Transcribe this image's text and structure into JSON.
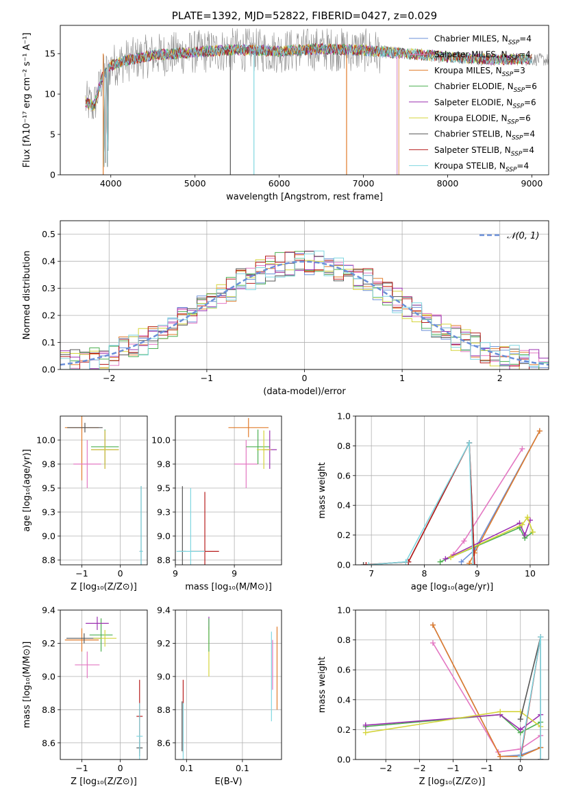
{
  "colors": {
    "Chabrier MILES": "#6a8fd8",
    "Salpeter MILES": "#e377c2",
    "Kroupa MILES": "#e07b2a",
    "Chabrier ELODIE": "#4caf50",
    "Salpeter ELODIE": "#9b30b0",
    "Kroupa ELODIE": "#d4d43a",
    "Chabrier STELIB": "#555555",
    "Salpeter STELIB": "#b71c1c",
    "Kroupa STELIB": "#7fd6e0",
    "data": "#888888"
  },
  "chart_data": [
    {
      "id": "spectrum",
      "type": "line",
      "title": "PLATE=1392, MJD=52822, FIBERID=0427, z=0.029",
      "xlabel": "wavelength [Angstrom, rest frame]",
      "ylabel": "Flux [fλ10⁻¹⁷ erg cm⁻² s⁻¹ A⁻¹]",
      "xlim": [
        3400,
        9200
      ],
      "ylim": [
        0,
        18.5
      ],
      "xticks": [
        4000,
        5000,
        6000,
        7000,
        8000,
        9000
      ],
      "yticks": [
        0,
        5,
        10,
        15
      ],
      "legend_position": "top-right",
      "legend": [
        {
          "label": "Chabrier MILES, N",
          "sub": "SSP",
          "tail": "=4"
        },
        {
          "label": "Salpeter MILES, N",
          "sub": "SSP",
          "tail": "=4"
        },
        {
          "label": "Kroupa MILES, N",
          "sub": "SSP",
          "tail": "=3"
        },
        {
          "label": "Chabrier ELODIE, N",
          "sub": "SSP",
          "tail": "=6"
        },
        {
          "label": "Salpeter ELODIE, N",
          "sub": "SSP",
          "tail": "=6"
        },
        {
          "label": "Kroupa ELODIE, N",
          "sub": "SSP",
          "tail": "=6"
        },
        {
          "label": "Chabrier STELIB, N",
          "sub": "SSP",
          "tail": "=4"
        },
        {
          "label": "Salpeter STELIB, N",
          "sub": "SSP",
          "tail": "=4"
        },
        {
          "label": "Kroupa STELIB, N",
          "sub": "SSP",
          "tail": "=4"
        }
      ],
      "continuum": [
        [
          3700,
          9.0
        ],
        [
          3800,
          8.5
        ],
        [
          3900,
          12.0
        ],
        [
          4000,
          13.5
        ],
        [
          4200,
          14.2
        ],
        [
          4500,
          14.8
        ],
        [
          5000,
          15.2
        ],
        [
          5500,
          15.5
        ],
        [
          6000,
          15.3
        ],
        [
          6500,
          15.6
        ],
        [
          7000,
          15.4
        ],
        [
          7500,
          15.0
        ],
        [
          8000,
          14.6
        ],
        [
          8500,
          14.3
        ],
        [
          9000,
          14.3
        ],
        [
          9200,
          14.2
        ]
      ],
      "model_cuts": [
        {
          "series": "Kroupa MILES",
          "x": [
            3700,
            7420
          ]
        },
        {
          "series": "Kroupa STELIB",
          "x": [
            3700,
            9000
          ]
        }
      ]
    },
    {
      "id": "residuals",
      "type": "step",
      "xlabel": "(data-model)/error",
      "ylabel": "Normed distribution",
      "xlim": [
        -2.5,
        2.5
      ],
      "ylim": [
        0,
        0.55
      ],
      "xticks": [
        -2,
        -1,
        0,
        1,
        2
      ],
      "yticks": [
        0.0,
        0.1,
        0.2,
        0.3,
        0.4,
        0.5
      ],
      "legend_position": "top-right",
      "legend": [
        {
          "label": "𝒩(0, 1)"
        }
      ],
      "bin_width": 0.1
    },
    {
      "id": "age-vs-Z",
      "type": "scatter",
      "xlabel": "Z [log₁₀(Z/Z⊙)]",
      "ylabel": "age  [log₁₀(age/yr)]",
      "xlim": [
        -0.78,
        0.35
      ],
      "ylim": [
        8.7,
        10.25
      ],
      "xticks": [
        -0.5,
        0.0
      ],
      "yticks": [
        8.75,
        9.0,
        9.25,
        9.5,
        9.75,
        10.0
      ],
      "points": [
        {
          "series": "Kroupa MILES",
          "x": -0.5,
          "y": 10.13,
          "xerr": 0.22,
          "yerr": 0.55
        },
        {
          "series": "Chabrier STELIB",
          "x": -0.46,
          "y": 10.13,
          "xerr": 0.23,
          "yerr": 0.05
        },
        {
          "series": "Salpeter MILES",
          "x": -0.43,
          "y": 9.75,
          "xerr": 0.18,
          "yerr": 0.25
        },
        {
          "series": "Chabrier ELODIE",
          "x": -0.2,
          "y": 9.93,
          "xerr": 0.18,
          "yerr": 0.18
        },
        {
          "series": "Salpeter ELODIE",
          "x": -0.2,
          "y": 9.9,
          "xerr": 0.18,
          "yerr": 0.2
        },
        {
          "series": "Kroupa ELODIE",
          "x": -0.2,
          "y": 9.9,
          "xerr": 0.18,
          "yerr": 0.2
        },
        {
          "series": "Chabrier STELIB",
          "x": 0.27,
          "y": 8.84,
          "xerr": 0.02,
          "yerr": 0.68
        },
        {
          "series": "Kroupa STELIB",
          "x": 0.27,
          "y": 8.84,
          "xerr": 0.02,
          "yerr": 0.68
        }
      ]
    },
    {
      "id": "age-vs-mass",
      "type": "scatter",
      "xlabel": "mass [log₁₀(M/M⊙)]",
      "ylabel": "",
      "xlim": [
        8.5,
        9.4
      ],
      "ylim": [
        8.7,
        10.25
      ],
      "xticks": [
        8.5,
        9.0
      ],
      "yticks": [
        8.75,
        9.0,
        9.25,
        9.5,
        9.75,
        10.0
      ],
      "points": [
        {
          "series": "Kroupa MILES",
          "x": 9.12,
          "y": 10.13,
          "xerr": 0.17,
          "yerr": 0.1
        },
        {
          "series": "Salpeter MILES",
          "x": 9.1,
          "y": 9.75,
          "xerr": 0.1,
          "yerr": 0.25
        },
        {
          "series": "Chabrier ELODIE",
          "x": 9.2,
          "y": 9.93,
          "xerr": 0.1,
          "yerr": 0.18
        },
        {
          "series": "Salpeter ELODIE",
          "x": 9.3,
          "y": 9.9,
          "xerr": 0.06,
          "yerr": 0.2
        },
        {
          "series": "Kroupa ELODIE",
          "x": 9.25,
          "y": 9.9,
          "xerr": 0.06,
          "yerr": 0.2
        },
        {
          "series": "Chabrier STELIB",
          "x": 8.56,
          "y": 8.84,
          "xerr": 0.03,
          "yerr": 0.68
        },
        {
          "series": "Salpeter STELIB",
          "x": 8.75,
          "y": 8.84,
          "xerr": 0.12,
          "yerr": 0.62
        },
        {
          "series": "Kroupa STELIB",
          "x": 8.63,
          "y": 8.84,
          "xerr": 0.12,
          "yerr": 0.66
        }
      ]
    },
    {
      "id": "weight-vs-age",
      "type": "line",
      "xlabel": "age  [log₁₀(age/yr)]",
      "ylabel": "mass weight",
      "xlim": [
        6.7,
        10.35
      ],
      "ylim": [
        0,
        1.0
      ],
      "xticks": [
        7,
        8,
        9,
        10
      ],
      "yticks": [
        0.0,
        0.2,
        0.4,
        0.6,
        0.8,
        1.0
      ],
      "series": [
        {
          "name": "Chabrier MILES",
          "x": [
            8.7,
            8.95,
            10.18
          ],
          "y": [
            0.02,
            0.1,
            0.9
          ]
        },
        {
          "name": "Salpeter MILES",
          "x": [
            8.55,
            8.75,
            9.85
          ],
          "y": [
            0.07,
            0.16,
            0.78
          ]
        },
        {
          "name": "Kroupa MILES",
          "x": [
            8.85,
            8.95,
            10.18
          ],
          "y": [
            0.01,
            0.08,
            0.9
          ]
        },
        {
          "name": "Chabrier ELODIE",
          "x": [
            8.3,
            9.8,
            9.9,
            10.05
          ],
          "y": [
            0.02,
            0.25,
            0.18,
            0.22
          ]
        },
        {
          "name": "Salpeter ELODIE",
          "x": [
            8.4,
            9.8,
            9.9,
            10.0
          ],
          "y": [
            0.04,
            0.28,
            0.2,
            0.3
          ]
        },
        {
          "name": "Kroupa ELODIE",
          "x": [
            8.5,
            9.85,
            9.95,
            10.05
          ],
          "y": [
            0.05,
            0.27,
            0.32,
            0.22
          ]
        },
        {
          "name": "Chabrier STELIB",
          "x": [
            6.85,
            7.7,
            8.85,
            8.95
          ],
          "y": [
            0.0,
            0.02,
            0.82,
            0.0
          ]
        },
        {
          "name": "Salpeter STELIB",
          "x": [
            6.9,
            7.7,
            8.85,
            8.95
          ],
          "y": [
            0.0,
            0.02,
            0.82,
            0.0
          ]
        },
        {
          "name": "Kroupa STELIB",
          "x": [
            6.95,
            7.65,
            8.85,
            8.92
          ],
          "y": [
            0.0,
            0.02,
            0.82,
            0.0
          ]
        }
      ]
    },
    {
      "id": "mass-vs-Z",
      "type": "scatter",
      "xlabel": "Z [log₁₀(Z/Z⊙)]",
      "ylabel": "mass [log₁₀(M/M⊙)]",
      "xlim": [
        -0.78,
        0.35
      ],
      "ylim": [
        8.5,
        9.4
      ],
      "xticks": [
        -0.5,
        0.0
      ],
      "yticks": [
        8.6,
        8.8,
        9.0,
        9.2,
        9.4
      ],
      "points": [
        {
          "series": "Kroupa MILES",
          "x": -0.5,
          "y": 9.22,
          "xerr": 0.22,
          "yerr": 0.07
        },
        {
          "series": "Chabrier STELIB",
          "x": -0.47,
          "y": 9.23,
          "xerr": 0.23,
          "yerr": 0.03
        },
        {
          "series": "Salpeter MILES",
          "x": -0.43,
          "y": 9.07,
          "xerr": 0.16,
          "yerr": 0.08
        },
        {
          "series": "Chabrier ELODIE",
          "x": -0.25,
          "y": 9.25,
          "xerr": 0.15,
          "yerr": 0.1
        },
        {
          "series": "Salpeter ELODIE",
          "x": -0.3,
          "y": 9.32,
          "xerr": 0.15,
          "yerr": 0.04
        },
        {
          "series": "Kroupa ELODIE",
          "x": -0.2,
          "y": 9.23,
          "xerr": 0.15,
          "yerr": 0.05
        },
        {
          "series": "Salpeter STELIB",
          "x": 0.25,
          "y": 8.76,
          "xerr": 0.04,
          "yerr": 0.22
        },
        {
          "series": "Chabrier STELIB",
          "x": 0.25,
          "y": 8.57,
          "xerr": 0.04,
          "yerr": 0.05
        },
        {
          "series": "Kroupa STELIB",
          "x": 0.25,
          "y": 8.64,
          "xerr": 0.04,
          "yerr": 0.2
        }
      ]
    },
    {
      "id": "mass-vs-ebv",
      "type": "scatter",
      "xlabel": "E(B-V)",
      "ylabel": "",
      "xlim": [
        0.04,
        0.135
      ],
      "ylim": [
        8.5,
        9.4
      ],
      "xticks": [
        0.05,
        0.1
      ],
      "yticks": [
        8.6,
        8.8,
        9.0,
        9.2,
        9.4
      ],
      "points": [
        {
          "series": "Chabrier STELIB",
          "x": 0.046,
          "y": 8.7,
          "xerr": 0,
          "yerr": 0.15
        },
        {
          "series": "Salpeter STELIB",
          "x": 0.047,
          "y": 8.76,
          "xerr": 0,
          "yerr": 0.22
        },
        {
          "series": "Kroupa STELIB",
          "x": 0.047,
          "y": 8.64,
          "xerr": 0,
          "yerr": 0.2
        },
        {
          "series": "Salpeter ELODIE",
          "x": 0.07,
          "y": 9.32,
          "xerr": 0,
          "yerr": 0.04
        },
        {
          "series": "Kroupa ELODIE",
          "x": 0.07,
          "y": 9.15,
          "xerr": 0,
          "yerr": 0.15
        },
        {
          "series": "Chabrier ELODIE",
          "x": 0.07,
          "y": 9.25,
          "xerr": 0,
          "yerr": 0.1
        },
        {
          "series": "Salpeter MILES",
          "x": 0.127,
          "y": 9.07,
          "xerr": 0,
          "yerr": 0.15
        },
        {
          "series": "Kroupa STELIB",
          "x": 0.126,
          "y": 9.0,
          "xerr": 0,
          "yerr": 0.27
        },
        {
          "series": "Kroupa MILES",
          "x": 0.131,
          "y": 9.05,
          "xerr": 0,
          "yerr": 0.25
        }
      ]
    },
    {
      "id": "weight-vs-Z",
      "type": "line",
      "xlabel": "Z [log₁₀(Z/Z⊙)]",
      "ylabel": "mass weight",
      "xlim": [
        -2.45,
        0.42
      ],
      "ylim": [
        0,
        1.0
      ],
      "xticks": [
        -2.0,
        -1.5,
        -1.0,
        -0.5,
        0.0
      ],
      "yticks": [
        0.0,
        0.2,
        0.4,
        0.6,
        0.8,
        1.0
      ],
      "series": [
        {
          "name": "Chabrier MILES",
          "x": [
            -1.3,
            -0.3,
            0.0,
            0.3
          ],
          "y": [
            0.9,
            0.02,
            0.03,
            0.08
          ]
        },
        {
          "name": "Salpeter MILES",
          "x": [
            -1.3,
            -0.33,
            0.0,
            0.3
          ],
          "y": [
            0.78,
            0.05,
            0.07,
            0.16
          ]
        },
        {
          "name": "Kroupa MILES",
          "x": [
            -1.3,
            -0.3,
            0.0,
            0.3
          ],
          "y": [
            0.9,
            0.02,
            0.02,
            0.08
          ]
        },
        {
          "name": "Chabrier ELODIE",
          "x": [
            -2.3,
            -0.3,
            0.0,
            0.3
          ],
          "y": [
            0.22,
            0.3,
            0.18,
            0.25
          ]
        },
        {
          "name": "Salpeter ELODIE",
          "x": [
            -2.3,
            -0.3,
            0.0,
            0.3
          ],
          "y": [
            0.23,
            0.3,
            0.2,
            0.3
          ]
        },
        {
          "name": "Kroupa ELODIE",
          "x": [
            -2.3,
            -0.3,
            0.0,
            0.3
          ],
          "y": [
            0.18,
            0.32,
            0.32,
            0.22
          ]
        },
        {
          "name": "Chabrier STELIB",
          "x": [
            0.0,
            0.3,
            0.3
          ],
          "y": [
            0.27,
            0.82,
            0.0
          ]
        },
        {
          "name": "Salpeter STELIB",
          "x": [
            0.0,
            0.3,
            0.3
          ],
          "y": [
            0.0,
            0.82,
            0.0
          ]
        },
        {
          "name": "Kroupa STELIB",
          "x": [
            0.0,
            0.3,
            0.3
          ],
          "y": [
            0.02,
            0.82,
            0.0
          ]
        }
      ]
    }
  ]
}
